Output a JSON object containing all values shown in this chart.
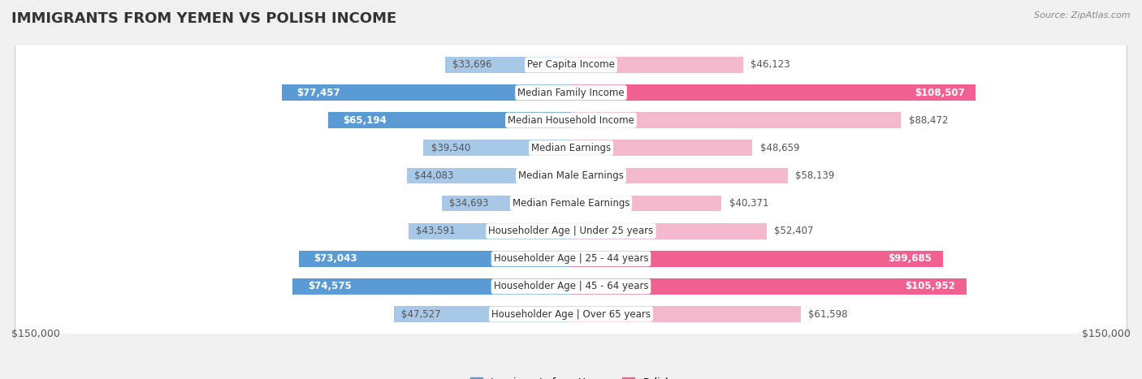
{
  "title": "IMMIGRANTS FROM YEMEN VS POLISH INCOME",
  "source": "Source: ZipAtlas.com",
  "categories": [
    "Per Capita Income",
    "Median Family Income",
    "Median Household Income",
    "Median Earnings",
    "Median Male Earnings",
    "Median Female Earnings",
    "Householder Age | Under 25 years",
    "Householder Age | 25 - 44 years",
    "Householder Age | 45 - 64 years",
    "Householder Age | Over 65 years"
  ],
  "yemen_values": [
    33696,
    77457,
    65194,
    39540,
    44083,
    34693,
    43591,
    73043,
    74575,
    47527
  ],
  "polish_values": [
    46123,
    108507,
    88472,
    48659,
    58139,
    40371,
    52407,
    99685,
    105952,
    61598
  ],
  "yemen_labels": [
    "$33,696",
    "$77,457",
    "$65,194",
    "$39,540",
    "$44,083",
    "$34,693",
    "$43,591",
    "$73,043",
    "$74,575",
    "$47,527"
  ],
  "polish_labels": [
    "$46,123",
    "$108,507",
    "$88,472",
    "$48,659",
    "$58,139",
    "$40,371",
    "$52,407",
    "$99,685",
    "$105,952",
    "$61,598"
  ],
  "yemen_color_light": "#a8c8e8",
  "yemen_color_dark": "#5b9bd5",
  "polish_color_light": "#f4b8cc",
  "polish_color_dark": "#f06090",
  "yemen_dark_indices": [
    1,
    2,
    7,
    8
  ],
  "polish_dark_indices": [
    1,
    7,
    8
  ],
  "max_value": 150000,
  "bottom_label_left": "$150,000",
  "bottom_label_right": "$150,000",
  "legend_yemen": "Immigrants from Yemen",
  "legend_polish": "Polish",
  "background_color": "#f0f0f0",
  "row_background": "#ffffff",
  "title_fontsize": 13,
  "cat_label_fontsize": 8.5,
  "val_label_fontsize": 8.5
}
